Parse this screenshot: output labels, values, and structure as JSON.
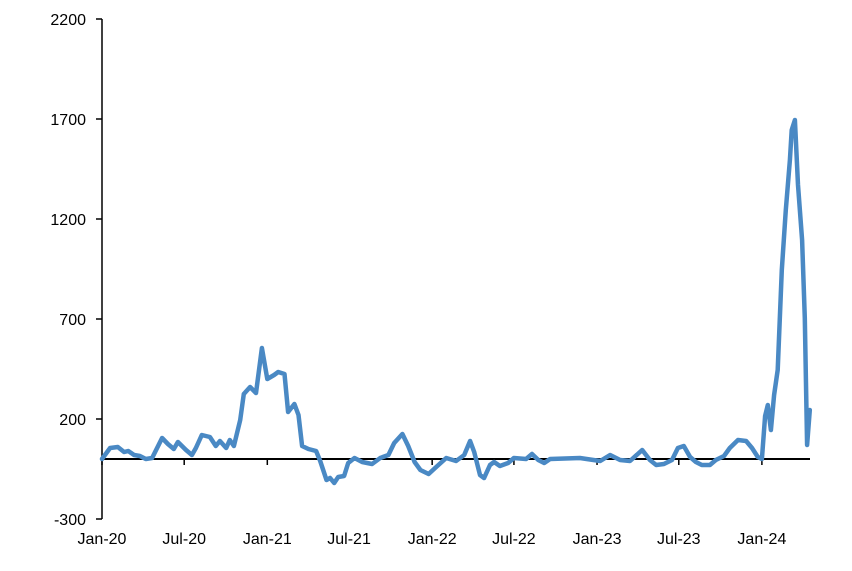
{
  "chart_data": {
    "type": "line",
    "title": "",
    "xlabel": "",
    "ylabel": "",
    "ylim": [
      -300,
      2200
    ],
    "yticks": [
      -300,
      200,
      700,
      1200,
      1700,
      2200
    ],
    "xlim": [
      "2020-01-01",
      "2024-04-20"
    ],
    "xticks": [
      {
        "date": "2020-01-01",
        "label": "Jan-20"
      },
      {
        "date": "2020-07-01",
        "label": "Jul-20"
      },
      {
        "date": "2021-01-01",
        "label": "Jan-21"
      },
      {
        "date": "2021-07-01",
        "label": "Jul-21"
      },
      {
        "date": "2022-01-01",
        "label": "Jan-22"
      },
      {
        "date": "2022-07-01",
        "label": "Jul-22"
      },
      {
        "date": "2023-01-01",
        "label": "Jan-23"
      },
      {
        "date": "2023-07-01",
        "label": "Jul-23"
      },
      {
        "date": "2024-01-01",
        "label": "Jan-24"
      }
    ],
    "grid": false,
    "legend": "none",
    "series": [
      {
        "color": "#4a89c4",
        "points": [
          [
            "2020-01-01",
            0
          ],
          [
            "2020-01-19",
            55
          ],
          [
            "2020-02-05",
            60
          ],
          [
            "2020-02-19",
            35
          ],
          [
            "2020-02-28",
            40
          ],
          [
            "2020-03-12",
            20
          ],
          [
            "2020-03-25",
            15
          ],
          [
            "2020-04-07",
            0
          ],
          [
            "2020-04-21",
            5
          ],
          [
            "2020-05-13",
            105
          ],
          [
            "2020-05-26",
            75
          ],
          [
            "2020-06-08",
            50
          ],
          [
            "2020-06-17",
            85
          ],
          [
            "2020-07-05",
            45
          ],
          [
            "2020-07-18",
            20
          ],
          [
            "2020-07-27",
            55
          ],
          [
            "2020-08-09",
            120
          ],
          [
            "2020-08-27",
            110
          ],
          [
            "2020-09-09",
            65
          ],
          [
            "2020-09-18",
            90
          ],
          [
            "2020-10-02",
            55
          ],
          [
            "2020-10-10",
            95
          ],
          [
            "2020-10-19",
            65
          ],
          [
            "2020-11-02",
            195
          ],
          [
            "2020-11-10",
            325
          ],
          [
            "2020-11-24",
            360
          ],
          [
            "2020-12-07",
            330
          ],
          [
            "2020-12-20",
            555
          ],
          [
            "2021-01-01",
            400
          ],
          [
            "2021-01-16",
            420
          ],
          [
            "2021-01-25",
            435
          ],
          [
            "2021-02-08",
            425
          ],
          [
            "2021-02-16",
            235
          ],
          [
            "2021-03-02",
            275
          ],
          [
            "2021-03-11",
            220
          ],
          [
            "2021-03-19",
            65
          ],
          [
            "2021-04-02",
            50
          ],
          [
            "2021-04-19",
            40
          ],
          [
            "2021-04-28",
            -10
          ],
          [
            "2021-05-12",
            -105
          ],
          [
            "2021-05-20",
            -95
          ],
          [
            "2021-05-29",
            -120
          ],
          [
            "2021-06-07",
            -90
          ],
          [
            "2021-06-20",
            -85
          ],
          [
            "2021-06-29",
            -20
          ],
          [
            "2021-07-13",
            5
          ],
          [
            "2021-07-30",
            -15
          ],
          [
            "2021-08-21",
            -25
          ],
          [
            "2021-09-08",
            5
          ],
          [
            "2021-09-26",
            20
          ],
          [
            "2021-10-09",
            80
          ],
          [
            "2021-10-27",
            125
          ],
          [
            "2021-11-09",
            65
          ],
          [
            "2021-11-23",
            -15
          ],
          [
            "2021-12-06",
            -55
          ],
          [
            "2021-12-24",
            -75
          ],
          [
            "2022-01-10",
            -40
          ],
          [
            "2022-02-01",
            5
          ],
          [
            "2022-02-23",
            -10
          ],
          [
            "2022-03-13",
            20
          ],
          [
            "2022-03-26",
            90
          ],
          [
            "2022-04-04",
            35
          ],
          [
            "2022-04-17",
            -80
          ],
          [
            "2022-04-26",
            -95
          ],
          [
            "2022-05-09",
            -30
          ],
          [
            "2022-05-18",
            -15
          ],
          [
            "2022-05-31",
            -35
          ],
          [
            "2022-06-18",
            -20
          ],
          [
            "2022-07-01",
            5
          ],
          [
            "2022-07-28",
            0
          ],
          [
            "2022-08-10",
            25
          ],
          [
            "2022-08-24",
            -5
          ],
          [
            "2022-09-06",
            -20
          ],
          [
            "2022-09-19",
            0
          ],
          [
            "2022-11-24",
            5
          ],
          [
            "2023-01-08",
            -10
          ],
          [
            "2023-01-30",
            20
          ],
          [
            "2023-02-21",
            -5
          ],
          [
            "2023-03-15",
            -10
          ],
          [
            "2023-04-11",
            45
          ],
          [
            "2023-04-28",
            -5
          ],
          [
            "2023-05-12",
            -30
          ],
          [
            "2023-05-29",
            -25
          ],
          [
            "2023-06-16",
            -5
          ],
          [
            "2023-06-29",
            55
          ],
          [
            "2023-07-12",
            65
          ],
          [
            "2023-07-26",
            10
          ],
          [
            "2023-08-08",
            -15
          ],
          [
            "2023-08-21",
            -30
          ],
          [
            "2023-09-08",
            -30
          ],
          [
            "2023-09-21",
            -5
          ],
          [
            "2023-10-09",
            15
          ],
          [
            "2023-10-22",
            55
          ],
          [
            "2023-11-09",
            95
          ],
          [
            "2023-11-27",
            90
          ],
          [
            "2023-12-10",
            55
          ],
          [
            "2023-12-23",
            10
          ],
          [
            "2024-01-01",
            0
          ],
          [
            "2024-01-08",
            215
          ],
          [
            "2024-01-14",
            270
          ],
          [
            "2024-01-21",
            145
          ],
          [
            "2024-01-28",
            320
          ],
          [
            "2024-02-05",
            445
          ],
          [
            "2024-02-14",
            945
          ],
          [
            "2024-02-23",
            1245
          ],
          [
            "2024-03-03",
            1495
          ],
          [
            "2024-03-07",
            1645
          ],
          [
            "2024-03-14",
            1695
          ],
          [
            "2024-03-21",
            1370
          ],
          [
            "2024-03-30",
            1095
          ],
          [
            "2024-04-05",
            705
          ],
          [
            "2024-04-10",
            70
          ],
          [
            "2024-04-16",
            245
          ]
        ]
      }
    ]
  }
}
